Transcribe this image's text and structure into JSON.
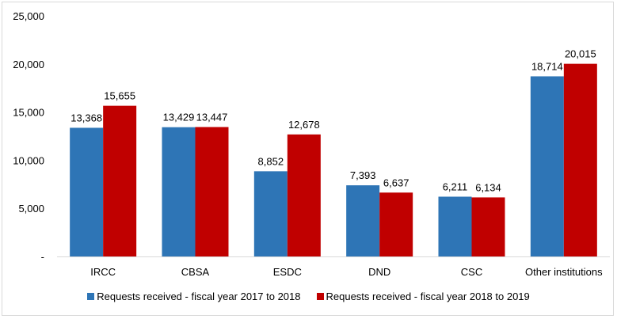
{
  "chart_data": {
    "type": "bar",
    "title": "",
    "xlabel": "",
    "ylabel": "",
    "ylim": [
      0,
      25000
    ],
    "yticks": [
      0,
      5000,
      10000,
      15000,
      20000,
      25000
    ],
    "ytick_labels": [
      "-",
      "5,000",
      "10,000",
      "15,000",
      "20,000",
      "25,000"
    ],
    "grid": false,
    "legend_position": "bottom",
    "categories": [
      "IRCC",
      "CBSA",
      "ESDC",
      "DND",
      "CSC",
      "Other institutions"
    ],
    "series": [
      {
        "name": "Requests received - fiscal year 2017 to 2018",
        "color": "#2e75b6",
        "values": [
          13368,
          13429,
          8852,
          7393,
          6211,
          18714
        ],
        "labels": [
          "13,368",
          "13,429",
          "8,852",
          "7,393",
          "6,211",
          "18,714"
        ]
      },
      {
        "name": "Requests received - fiscal year 2018 to 2019",
        "color": "#c00000",
        "values": [
          15655,
          13447,
          12678,
          6637,
          6134,
          20015
        ],
        "labels": [
          "15,655",
          "13,447",
          "12,678",
          "6,637",
          "6,134",
          "20,015"
        ]
      }
    ]
  }
}
